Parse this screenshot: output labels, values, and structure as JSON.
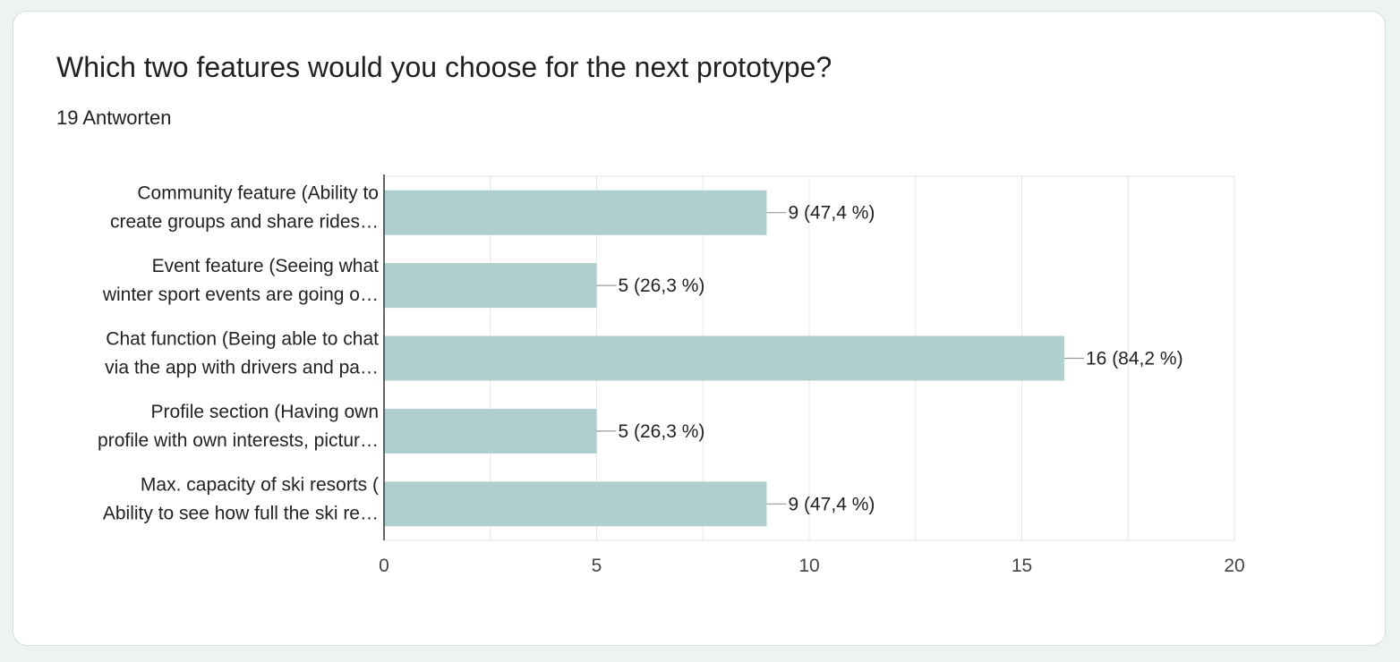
{
  "question": {
    "title": "Which two features would you choose for the next prototype?",
    "response_count": "19 Antworten"
  },
  "colors": {
    "bar": "#afcfce",
    "grid": "#e6e6e6",
    "axis": "#333333",
    "leader": "#999999"
  },
  "chart_data": {
    "type": "bar",
    "orientation": "horizontal",
    "title": "",
    "xlabel": "",
    "ylabel": "",
    "xlim": [
      0,
      20
    ],
    "ticks": [
      0,
      5,
      10,
      15,
      20
    ],
    "tick_labels": [
      "0",
      "5",
      "10",
      "15",
      "20"
    ],
    "grid": true,
    "categories": [
      [
        "Community feature (Ability to",
        "create groups and share rides…"
      ],
      [
        "Event feature (Seeing what",
        "winter sport events are going o…"
      ],
      [
        "Chat function (Being able to chat",
        "via the app with drivers and pa…"
      ],
      [
        "Profile section (Having own",
        "profile with own interests, pictur…"
      ],
      [
        "Max. capacity of ski resorts (",
        "Ability to see how full the ski re…"
      ]
    ],
    "values": [
      9,
      5,
      16,
      5,
      9
    ],
    "data_labels": [
      "9 (47,4 %)",
      "5 (26,3 %)",
      "16 (84,2 %)",
      "5 (26,3 %)",
      "9 (47,4 %)"
    ]
  }
}
